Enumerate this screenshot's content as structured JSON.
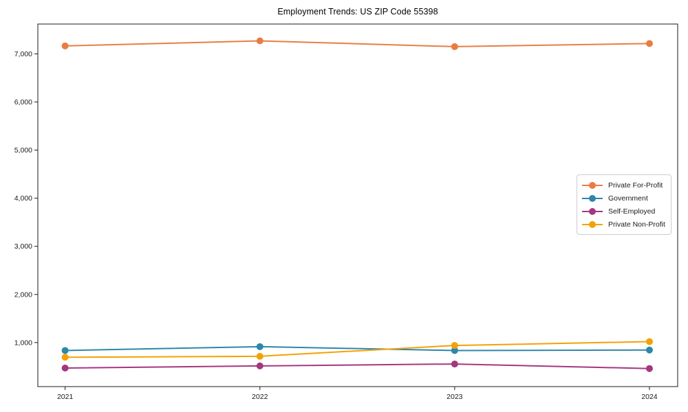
{
  "title": "Employment Trends: US ZIP Code 55398",
  "chart_data": {
    "type": "line",
    "title": "Employment Trends: US ZIP Code 55398",
    "xlabel": "",
    "ylabel": "",
    "x": [
      2021,
      2022,
      2023,
      2024
    ],
    "x_tick_labels": [
      "2021",
      "2022",
      "2023",
      "2024"
    ],
    "y_ticks": [
      1000,
      2000,
      3000,
      4000,
      5000,
      6000,
      7000
    ],
    "y_tick_labels": [
      "1,000",
      "2,000",
      "3,000",
      "4,000",
      "5,000",
      "6,000",
      "7,000"
    ],
    "xlim": [
      2020.86,
      2024.145
    ],
    "ylim": [
      85,
      7620
    ],
    "grid": false,
    "legend_position": "center right",
    "series": [
      {
        "name": "Private For-Profit",
        "color": "#e87d43",
        "values": [
          7165,
          7270,
          7150,
          7215
        ]
      },
      {
        "name": "Government",
        "color": "#2e86ab",
        "values": [
          835,
          915,
          835,
          845
        ]
      },
      {
        "name": "Self-Employed",
        "color": "#a53680",
        "values": [
          470,
          515,
          555,
          460
        ]
      },
      {
        "name": "Private Non-Profit",
        "color": "#f3a104",
        "values": [
          695,
          715,
          940,
          1020
        ]
      }
    ]
  }
}
